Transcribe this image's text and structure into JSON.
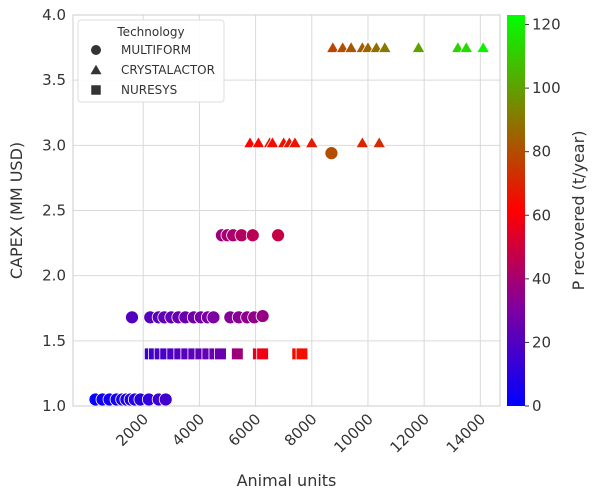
{
  "chart_data": {
    "type": "scatter",
    "title": "",
    "xlabel": "Animal units",
    "ylabel": "CAPEX (MM USD)",
    "xlim": [
      -500,
      14700
    ],
    "ylim": [
      1.0,
      4.0
    ],
    "xticks": [
      2000,
      4000,
      6000,
      8000,
      10000,
      12000,
      14000
    ],
    "yticks": [
      1.0,
      1.5,
      2.0,
      2.5,
      3.0,
      3.5,
      4.0
    ],
    "grid": true,
    "legend": {
      "title": "Technology",
      "position": "top-left",
      "entries": [
        {
          "label": "MULTIFORM",
          "marker": "circle"
        },
        {
          "label": "CRYSTALACTOR",
          "marker": "triangle"
        },
        {
          "label": "NURESYS",
          "marker": "square"
        }
      ]
    },
    "colorbar": {
      "label": "P recovered (t/year)",
      "min": 0,
      "max": 123,
      "ticks": [
        0,
        20,
        40,
        60,
        80,
        100,
        120
      ],
      "colors": [
        "#0000ff",
        "#7f00a0",
        "#ff0000",
        "#808000",
        "#00ff00"
      ]
    },
    "series": [
      {
        "name": "MULTIFORM",
        "marker": "circle",
        "points": [
          {
            "x": 300,
            "y": 1.05,
            "p": 2
          },
          {
            "x": 550,
            "y": 1.05,
            "p": 3
          },
          {
            "x": 800,
            "y": 1.05,
            "p": 4
          },
          {
            "x": 1050,
            "y": 1.05,
            "p": 5
          },
          {
            "x": 1250,
            "y": 1.05,
            "p": 6
          },
          {
            "x": 1400,
            "y": 1.05,
            "p": 7
          },
          {
            "x": 1550,
            "y": 1.05,
            "p": 8
          },
          {
            "x": 1700,
            "y": 1.05,
            "p": 9
          },
          {
            "x": 1900,
            "y": 1.05,
            "p": 10
          },
          {
            "x": 2200,
            "y": 1.05,
            "p": 12
          },
          {
            "x": 2550,
            "y": 1.05,
            "p": 14
          },
          {
            "x": 2800,
            "y": 1.05,
            "p": 16
          },
          {
            "x": 1600,
            "y": 1.68,
            "p": 20
          },
          {
            "x": 2250,
            "y": 1.68,
            "p": 21
          },
          {
            "x": 2550,
            "y": 1.68,
            "p": 22
          },
          {
            "x": 2750,
            "y": 1.68,
            "p": 23
          },
          {
            "x": 3000,
            "y": 1.68,
            "p": 24
          },
          {
            "x": 3250,
            "y": 1.68,
            "p": 25
          },
          {
            "x": 3500,
            "y": 1.68,
            "p": 26
          },
          {
            "x": 3800,
            "y": 1.68,
            "p": 27
          },
          {
            "x": 4050,
            "y": 1.68,
            "p": 28
          },
          {
            "x": 4300,
            "y": 1.68,
            "p": 29
          },
          {
            "x": 4500,
            "y": 1.68,
            "p": 30
          },
          {
            "x": 5100,
            "y": 1.68,
            "p": 32
          },
          {
            "x": 5400,
            "y": 1.68,
            "p": 33
          },
          {
            "x": 5700,
            "y": 1.68,
            "p": 34
          },
          {
            "x": 5950,
            "y": 1.68,
            "p": 35
          },
          {
            "x": 6250,
            "y": 1.69,
            "p": 36
          },
          {
            "x": 4800,
            "y": 2.31,
            "p": 38
          },
          {
            "x": 5000,
            "y": 2.31,
            "p": 40
          },
          {
            "x": 5200,
            "y": 2.31,
            "p": 41
          },
          {
            "x": 5500,
            "y": 2.31,
            "p": 43
          },
          {
            "x": 5900,
            "y": 2.31,
            "p": 45
          },
          {
            "x": 6800,
            "y": 2.31,
            "p": 48
          },
          {
            "x": 8700,
            "y": 2.94,
            "p": 80
          }
        ]
      },
      {
        "name": "CRYSTALACTOR",
        "marker": "triangle",
        "points": [
          {
            "x": 5800,
            "y": 3.02,
            "p": 62
          },
          {
            "x": 6100,
            "y": 3.02,
            "p": 63
          },
          {
            "x": 6500,
            "y": 3.02,
            "p": 64
          },
          {
            "x": 6600,
            "y": 3.02,
            "p": 64
          },
          {
            "x": 7000,
            "y": 3.02,
            "p": 65
          },
          {
            "x": 7200,
            "y": 3.02,
            "p": 66
          },
          {
            "x": 7400,
            "y": 3.02,
            "p": 66
          },
          {
            "x": 8000,
            "y": 3.02,
            "p": 68
          },
          {
            "x": 9800,
            "y": 3.02,
            "p": 70
          },
          {
            "x": 10400,
            "y": 3.02,
            "p": 72
          },
          {
            "x": 8750,
            "y": 3.75,
            "p": 78
          },
          {
            "x": 9100,
            "y": 3.75,
            "p": 80
          },
          {
            "x": 9400,
            "y": 3.75,
            "p": 82
          },
          {
            "x": 9800,
            "y": 3.75,
            "p": 84
          },
          {
            "x": 10000,
            "y": 3.75,
            "p": 86
          },
          {
            "x": 10300,
            "y": 3.75,
            "p": 88
          },
          {
            "x": 10600,
            "y": 3.75,
            "p": 90
          },
          {
            "x": 11800,
            "y": 3.75,
            "p": 100
          },
          {
            "x": 13200,
            "y": 3.75,
            "p": 112
          },
          {
            "x": 13500,
            "y": 3.75,
            "p": 115
          },
          {
            "x": 14100,
            "y": 3.75,
            "p": 120
          }
        ]
      },
      {
        "name": "NURESYS",
        "marker": "square",
        "points": [
          {
            "x": 2250,
            "y": 1.4,
            "p": 15
          },
          {
            "x": 2400,
            "y": 1.4,
            "p": 16
          },
          {
            "x": 2600,
            "y": 1.4,
            "p": 17
          },
          {
            "x": 2800,
            "y": 1.4,
            "p": 18
          },
          {
            "x": 3050,
            "y": 1.4,
            "p": 19
          },
          {
            "x": 3300,
            "y": 1.4,
            "p": 20
          },
          {
            "x": 3550,
            "y": 1.4,
            "p": 21
          },
          {
            "x": 3800,
            "y": 1.4,
            "p": 22
          },
          {
            "x": 4050,
            "y": 1.4,
            "p": 23
          },
          {
            "x": 4300,
            "y": 1.4,
            "p": 24
          },
          {
            "x": 4550,
            "y": 1.4,
            "p": 25
          },
          {
            "x": 4750,
            "y": 1.4,
            "p": 26
          },
          {
            "x": 5350,
            "y": 1.4,
            "p": 38
          },
          {
            "x": 6100,
            "y": 1.4,
            "p": 55
          },
          {
            "x": 6250,
            "y": 1.4,
            "p": 58
          },
          {
            "x": 7500,
            "y": 1.4,
            "p": 64
          },
          {
            "x": 7650,
            "y": 1.4,
            "p": 65
          }
        ]
      }
    ]
  }
}
